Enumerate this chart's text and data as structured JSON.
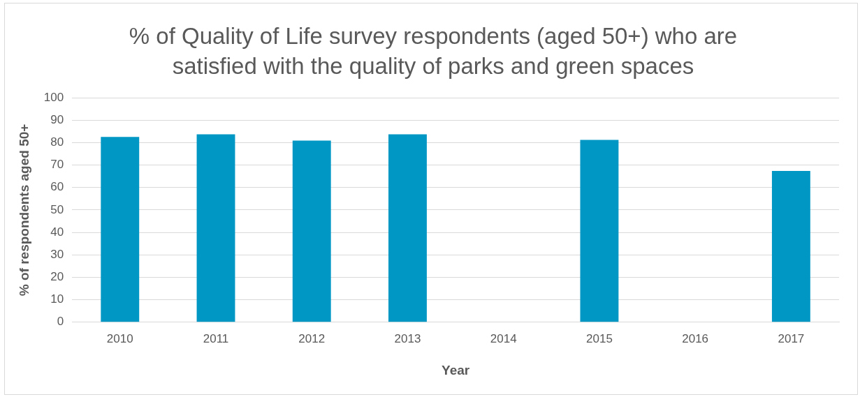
{
  "chart_data": {
    "type": "bar",
    "title": "% of Quality of Life survey respondents (aged 50+) who are satisfied with the quality of parks and green spaces",
    "xlabel": "Year",
    "ylabel": "% of respondents aged 50+",
    "categories": [
      "2010",
      "2011",
      "2012",
      "2013",
      "2014",
      "2015",
      "2016",
      "2017"
    ],
    "values": [
      82.5,
      83.7,
      80.9,
      83.7,
      null,
      81.2,
      null,
      67.4
    ],
    "color": "#0097c4",
    "ylim": [
      0,
      100
    ],
    "yticks": [
      0,
      10,
      20,
      30,
      40,
      50,
      60,
      70,
      80,
      90,
      100
    ],
    "grid": "y",
    "legend": false
  }
}
